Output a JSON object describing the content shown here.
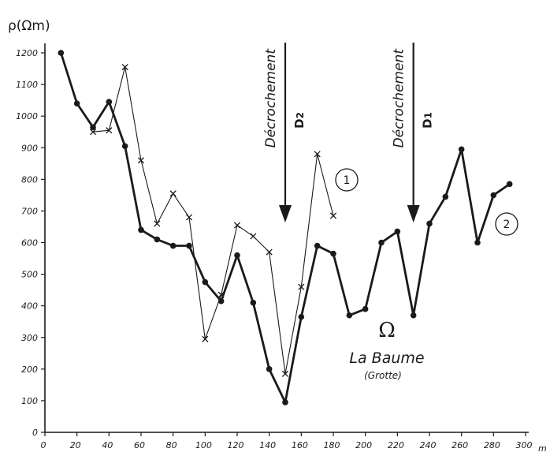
{
  "chart_data": {
    "type": "line",
    "ylabel": "ρ(Ωm)",
    "x_unit": "m",
    "xlim": [
      0,
      300
    ],
    "ylim": [
      0,
      1200
    ],
    "x_ticks": [
      0,
      20,
      40,
      60,
      80,
      100,
      120,
      140,
      160,
      180,
      200,
      220,
      240,
      260,
      280,
      300
    ],
    "y_ticks": [
      0,
      100,
      200,
      300,
      400,
      500,
      600,
      700,
      800,
      900,
      1000,
      1100,
      1200
    ],
    "grid": false,
    "series": [
      {
        "name": "1",
        "marker": "x",
        "line": "thin",
        "x": [
          30,
          40,
          50,
          60,
          70,
          80,
          90,
          100,
          110,
          120,
          130,
          140,
          150,
          160,
          170,
          180
        ],
        "y": [
          950,
          955,
          1155,
          860,
          660,
          755,
          680,
          295,
          435,
          655,
          620,
          570,
          185,
          460,
          880,
          685
        ]
      },
      {
        "name": "2",
        "marker": "dot",
        "line": "thick",
        "x": [
          10,
          20,
          30,
          40,
          50,
          60,
          70,
          80,
          90,
          100,
          110,
          120,
          130,
          140,
          150,
          160,
          170,
          180,
          190,
          200,
          210,
          220,
          230,
          240,
          250,
          260,
          270,
          280,
          290
        ],
        "y": [
          1200,
          1040,
          965,
          1045,
          905,
          640,
          610,
          590,
          590,
          475,
          415,
          560,
          410,
          200,
          95,
          365,
          590,
          565,
          370,
          390,
          600,
          635,
          370,
          660,
          745,
          895,
          600,
          750,
          785
        ]
      }
    ],
    "annotations": {
      "fault2": {
        "x": 150,
        "label": "Décrochement",
        "sub": "D",
        "index": "2"
      },
      "fault1": {
        "x": 230,
        "label": "Décrochement",
        "sub": "D",
        "index": "1"
      },
      "place_symbol": "Ω",
      "place_name": "La Baume",
      "place_note": "(Grotte)"
    }
  }
}
